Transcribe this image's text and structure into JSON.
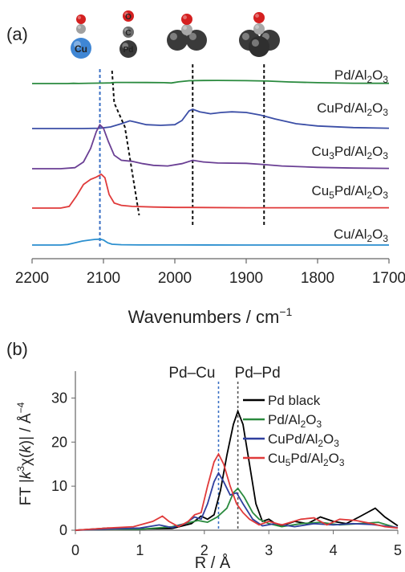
{
  "chart_data": [
    {
      "panel": "(a)",
      "type": "line",
      "xlabel": "Wavenumbers",
      "xunit": "cm",
      "xunit_sup": "−1",
      "xlim": [
        2200,
        1700
      ],
      "xticks": [
        "2200",
        "2100",
        "2000",
        "1900",
        "1800",
        "1700"
      ],
      "vlines": [
        {
          "x": 2105,
          "style": "blue-dashed"
        },
        {
          "x": 1975,
          "style": "black-dashed"
        },
        {
          "x": 1875,
          "style": "black-dashed"
        }
      ],
      "shift_line": [
        [
          2088,
          0
        ],
        [
          2085,
          0.55
        ],
        [
          2070,
          1.2
        ],
        [
          2050,
          3.35
        ]
      ],
      "icons": [
        {
          "x": 2100,
          "kind": "CO on Cu",
          "metal": "Cu"
        },
        {
          "x": 2088,
          "kind": "CO on Pd",
          "atoms": [
            "O",
            "C",
            "Pd"
          ]
        },
        {
          "x": 1975,
          "kind": "bridged CO"
        },
        {
          "x": 1875,
          "kind": "hollow CO"
        }
      ],
      "series": [
        {
          "name": "Pd/Al",
          "sub": "2",
          "suffix": "O",
          "sub2": "3",
          "color": "#2a8a3e",
          "points": [
            [
              2200,
              0
            ],
            [
              2150,
              0
            ],
            [
              2142,
              0.02
            ],
            [
              2135,
              0.01
            ],
            [
              2120,
              0.03
            ],
            [
              2100,
              0.04
            ],
            [
              2090,
              0.06
            ],
            [
              2083,
              0.1
            ],
            [
              2070,
              0.1
            ],
            [
              2040,
              0.09
            ],
            [
              2015,
              0.08
            ],
            [
              2005,
              0.05
            ],
            [
              1995,
              0.15
            ],
            [
              1980,
              0.25
            ],
            [
              1960,
              0.27
            ],
            [
              1940,
              0.28
            ],
            [
              1900,
              0.26
            ],
            [
              1870,
              0.22
            ],
            [
              1840,
              0.14
            ],
            [
              1800,
              0.08
            ],
            [
              1750,
              0.03
            ],
            [
              1700,
              0.02
            ]
          ]
        },
        {
          "name": "CuPd/Al",
          "sub": "2",
          "suffix": "O",
          "sub2": "3",
          "color": "#3b4ea6",
          "points": [
            [
              2200,
              0
            ],
            [
              2130,
              0
            ],
            [
              2105,
              0.01
            ],
            [
              2090,
              0.05
            ],
            [
              2075,
              0.15
            ],
            [
              2063,
              0.24
            ],
            [
              2055,
              0.2
            ],
            [
              2040,
              0.12
            ],
            [
              2020,
              0.1
            ],
            [
              2000,
              0.12
            ],
            [
              1990,
              0.25
            ],
            [
              1980,
              0.55
            ],
            [
              1975,
              0.6
            ],
            [
              1965,
              0.52
            ],
            [
              1950,
              0.46
            ],
            [
              1935,
              0.5
            ],
            [
              1920,
              0.52
            ],
            [
              1900,
              0.5
            ],
            [
              1880,
              0.42
            ],
            [
              1860,
              0.3
            ],
            [
              1830,
              0.15
            ],
            [
              1800,
              0.08
            ],
            [
              1750,
              0.03
            ],
            [
              1700,
              0.01
            ]
          ]
        },
        {
          "name": "Cu",
          "sub": "3",
          "suffix": "Pd/Al",
          "sub2": "2",
          "suffix2": "O",
          "sub3": "3",
          "color": "#6a3f94",
          "points": [
            [
              2200,
              0
            ],
            [
              2160,
              0
            ],
            [
              2140,
              0.03
            ],
            [
              2128,
              0.2
            ],
            [
              2118,
              0.6
            ],
            [
              2110,
              1.1
            ],
            [
              2105,
              1.3
            ],
            [
              2100,
              1.2
            ],
            [
              2093,
              0.8
            ],
            [
              2085,
              0.4
            ],
            [
              2075,
              0.25
            ],
            [
              2060,
              0.22
            ],
            [
              2045,
              0.15
            ],
            [
              2030,
              0.1
            ],
            [
              2010,
              0.08
            ],
            [
              1990,
              0.15
            ],
            [
              1975,
              0.25
            ],
            [
              1960,
              0.2
            ],
            [
              1940,
              0.17
            ],
            [
              1900,
              0.16
            ],
            [
              1880,
              0.13
            ],
            [
              1850,
              0.08
            ],
            [
              1800,
              0.04
            ],
            [
              1750,
              0.02
            ],
            [
              1700,
              0.01
            ]
          ]
        },
        {
          "name": "Cu",
          "sub": "5",
          "suffix": "Pd/Al",
          "sub2": "2",
          "suffix2": "O",
          "sub3": "3",
          "color": "#e03a3a",
          "points": [
            [
              2200,
              0
            ],
            [
              2160,
              0
            ],
            [
              2148,
              0.05
            ],
            [
              2138,
              0.35
            ],
            [
              2128,
              0.7
            ],
            [
              2118,
              0.85
            ],
            [
              2110,
              0.92
            ],
            [
              2103,
              1.0
            ],
            [
              2098,
              0.9
            ],
            [
              2092,
              0.4
            ],
            [
              2085,
              0.15
            ],
            [
              2075,
              0.08
            ],
            [
              2060,
              0.05
            ],
            [
              2030,
              0.03
            ],
            [
              2000,
              0.02
            ],
            [
              1980,
              0.02
            ],
            [
              1900,
              0.01
            ],
            [
              1800,
              0.01
            ],
            [
              1700,
              0.01
            ]
          ]
        },
        {
          "name": "Cu/Al",
          "sub": "2",
          "suffix": "O",
          "sub2": "3",
          "color": "#2b8fcf",
          "points": [
            [
              2200,
              0
            ],
            [
              2160,
              0
            ],
            [
              2150,
              0.05
            ],
            [
              2140,
              0.2
            ],
            [
              2130,
              0.35
            ],
            [
              2122,
              0.42
            ],
            [
              2112,
              0.5
            ],
            [
              2105,
              0.52
            ],
            [
              2100,
              0.45
            ],
            [
              2094,
              0.2
            ],
            [
              2088,
              0.07
            ],
            [
              2075,
              0.03
            ],
            [
              2050,
              0.01
            ],
            [
              2000,
              0.01
            ],
            [
              1900,
              0.0
            ],
            [
              1800,
              0.0
            ],
            [
              1700,
              0.0
            ]
          ]
        }
      ]
    },
    {
      "panel": "(b)",
      "type": "line",
      "xlabel": "R / Å",
      "ylabel_parts": [
        "FT |",
        "k",
        "3",
        "χ(",
        "k",
        ")| / Å",
        "−4"
      ],
      "xlim": [
        0,
        5
      ],
      "ylim": [
        0,
        35
      ],
      "xticks": [
        "0",
        "1",
        "2",
        "3",
        "4",
        "5"
      ],
      "yticks": [
        "0",
        "10",
        "20",
        "30"
      ],
      "legend_position": "right",
      "markers": [
        {
          "label": "Pd–Cu",
          "x": 2.22,
          "color": "#3a6fc4"
        },
        {
          "label": "Pd–Pd",
          "x": 2.52,
          "color": "#555555"
        }
      ],
      "series": [
        {
          "name": "Pd black",
          "color": "#000000",
          "points": [
            [
              0,
              0
            ],
            [
              0.5,
              0.5
            ],
            [
              1.0,
              0.3
            ],
            [
              1.5,
              0.4
            ],
            [
              1.8,
              1.5
            ],
            [
              1.95,
              3.2
            ],
            [
              2.05,
              2.5
            ],
            [
              2.15,
              3.5
            ],
            [
              2.25,
              9
            ],
            [
              2.35,
              17
            ],
            [
              2.45,
              24
            ],
            [
              2.52,
              27
            ],
            [
              2.6,
              24
            ],
            [
              2.7,
              15
            ],
            [
              2.8,
              6
            ],
            [
              2.9,
              2
            ],
            [
              3.0,
              2.5
            ],
            [
              3.1,
              1.5
            ],
            [
              3.2,
              1
            ],
            [
              3.4,
              2
            ],
            [
              3.6,
              1.5
            ],
            [
              3.8,
              3
            ],
            [
              4.0,
              2
            ],
            [
              4.2,
              1.5
            ],
            [
              4.4,
              3
            ],
            [
              4.55,
              4.2
            ],
            [
              4.65,
              5
            ],
            [
              4.8,
              3
            ],
            [
              5.0,
              1
            ]
          ]
        },
        {
          "name": "Pd/Al",
          "sub": "2",
          "suffix": "O",
          "sub2": "3",
          "color": "#2a8a3e",
          "points": [
            [
              0,
              0
            ],
            [
              0.5,
              0.3
            ],
            [
              1.0,
              0.2
            ],
            [
              1.5,
              0.8
            ],
            [
              1.7,
              1.5
            ],
            [
              1.9,
              2.2
            ],
            [
              2.05,
              1.8
            ],
            [
              2.2,
              3
            ],
            [
              2.35,
              5
            ],
            [
              2.45,
              8.5
            ],
            [
              2.52,
              9.5
            ],
            [
              2.62,
              7.5
            ],
            [
              2.75,
              4
            ],
            [
              2.85,
              2.5
            ],
            [
              3.0,
              1.5
            ],
            [
              3.2,
              0.8
            ],
            [
              3.5,
              1.5
            ],
            [
              3.8,
              1.8
            ],
            [
              4.1,
              1.2
            ],
            [
              4.4,
              1.5
            ],
            [
              4.7,
              1.8
            ],
            [
              5.0,
              0.5
            ]
          ]
        },
        {
          "name": "CuPd/Al",
          "sub": "2",
          "suffix": "O",
          "sub2": "3",
          "color": "#2f3f9e",
          "points": [
            [
              0,
              0
            ],
            [
              0.5,
              0.3
            ],
            [
              1.0,
              0.5
            ],
            [
              1.3,
              1.2
            ],
            [
              1.5,
              0.6
            ],
            [
              1.7,
              1.5
            ],
            [
              1.85,
              3
            ],
            [
              1.95,
              2.5
            ],
            [
              2.05,
              6
            ],
            [
              2.15,
              11
            ],
            [
              2.22,
              13
            ],
            [
              2.3,
              11
            ],
            [
              2.4,
              8
            ],
            [
              2.5,
              8.5
            ],
            [
              2.6,
              6
            ],
            [
              2.75,
              2.5
            ],
            [
              2.9,
              1
            ],
            [
              3.1,
              1.5
            ],
            [
              3.4,
              0.8
            ],
            [
              3.7,
              1.5
            ],
            [
              4.0,
              1.2
            ],
            [
              4.3,
              1.5
            ],
            [
              4.6,
              1.3
            ],
            [
              5.0,
              0.6
            ]
          ]
        },
        {
          "name": "Cu",
          "sub": "5",
          "suffix": "Pd/Al",
          "sub2": "2",
          "suffix2": "O",
          "sub3": "3",
          "color": "#e03a3a",
          "points": [
            [
              0,
              0
            ],
            [
              0.5,
              0.5
            ],
            [
              0.9,
              0.8
            ],
            [
              1.2,
              2
            ],
            [
              1.35,
              3.2
            ],
            [
              1.45,
              2
            ],
            [
              1.6,
              0.8
            ],
            [
              1.75,
              2
            ],
            [
              1.85,
              3.5
            ],
            [
              1.95,
              4
            ],
            [
              2.05,
              10
            ],
            [
              2.15,
              15.5
            ],
            [
              2.22,
              17.3
            ],
            [
              2.3,
              15
            ],
            [
              2.4,
              10
            ],
            [
              2.5,
              6
            ],
            [
              2.6,
              4
            ],
            [
              2.7,
              2.5
            ],
            [
              2.85,
              1.2
            ],
            [
              3.0,
              2
            ],
            [
              3.2,
              1.2
            ],
            [
              3.5,
              2.5
            ],
            [
              3.7,
              2.8
            ],
            [
              3.9,
              1.2
            ],
            [
              4.1,
              2.5
            ],
            [
              4.35,
              2.2
            ],
            [
              4.6,
              1.5
            ],
            [
              4.8,
              0.8
            ],
            [
              5.0,
              0.5
            ]
          ]
        }
      ]
    }
  ]
}
